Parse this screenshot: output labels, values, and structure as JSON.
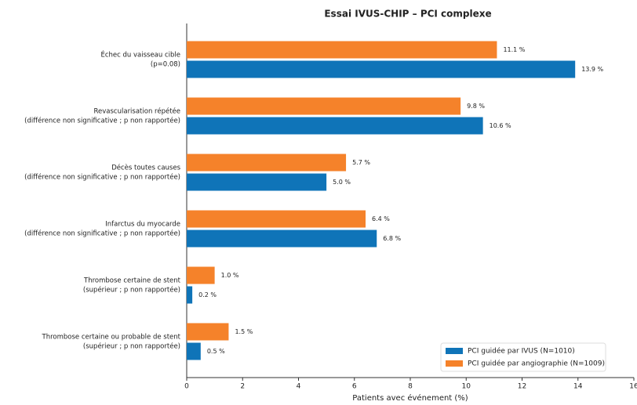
{
  "chart_data": {
    "type": "barh",
    "title": "Essai IVUS-CHIP – PCI complexe",
    "xlabel": "Patients avec événement (%)",
    "categories": [
      [
        "Échec du vaisseau cible",
        "(p=0.08)"
      ],
      [
        "Revascularisation répétée",
        "(différence non significative ; p non rapportée)"
      ],
      [
        "Décès toutes causes",
        "(différence non significative ; p non rapportée)"
      ],
      [
        "Infarctus du myocarde",
        "(différence non significative ; p non rapportée)"
      ],
      [
        "Thrombose certaine de stent",
        "(supérieur ; p non rapportée)"
      ],
      [
        "Thrombose certaine ou probable de stent",
        "(supérieur ; p non rapportée)"
      ]
    ],
    "series": [
      {
        "name": "PCI guidée par IVUS (N=1010)",
        "color": "#0f74b8",
        "values": [
          13.9,
          10.6,
          5.0,
          6.8,
          0.2,
          0.5
        ],
        "value_labels": [
          "13.9 %",
          "10.6 %",
          "5.0 %",
          "6.8 %",
          "0.2 %",
          "0.5 %"
        ]
      },
      {
        "name": "PCI guidée par angiographie (N=1009)",
        "color": "#f5822a",
        "values": [
          11.1,
          9.8,
          5.7,
          6.4,
          1.0,
          1.5
        ],
        "value_labels": [
          "11.1 %",
          "9.8 %",
          "5.7 %",
          "6.4 %",
          "1.0 %",
          "1.5 %"
        ]
      }
    ],
    "xlim": [
      0,
      16
    ],
    "xticks": [
      0,
      2,
      4,
      6,
      8,
      10,
      12,
      14,
      16
    ],
    "legend": "lower right"
  }
}
